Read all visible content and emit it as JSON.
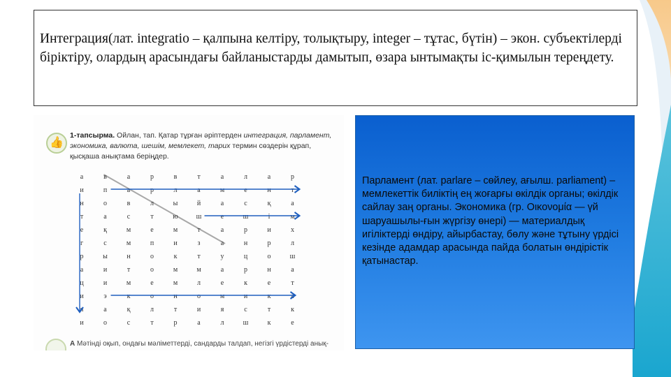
{
  "title_text": " Интеграция(лат. integratio – қалпына келтіру, толықтыру, integer – тұтас, бүтін) – экон. субъектілерді біріктіру, олардың арасындағы байланыстарды дамытып, өзара ынтымақты іс-қимылын тереңдету.",
  "exercise": {
    "task_label": "1-тапсырма.",
    "task_text_1": " Ойлан, тап. Қатар тұрған әріптерден ",
    "task_words": "интеграция, парламент, экономика, валюта, шешім, мемлекет, тарих",
    "task_text_2": " термин сөздерін құрап, қысқаша анықтама беріңдер.",
    "grid": [
      [
        "а",
        "в",
        "а",
        "р",
        "в",
        "т",
        "а",
        "л",
        "а",
        "р"
      ],
      [
        "и",
        "п",
        "а",
        "р",
        "л",
        "а",
        "м",
        "е",
        "н",
        "т"
      ],
      [
        "н",
        "о",
        "в",
        "л",
        "ы",
        "й",
        "а",
        "с",
        "қ",
        "а"
      ],
      [
        "т",
        "а",
        "с",
        "т",
        "ю",
        "ш",
        "е",
        "ш",
        "і",
        "м"
      ],
      [
        "е",
        "қ",
        "м",
        "е",
        "м",
        "т",
        "а",
        "р",
        "и",
        "х"
      ],
      [
        "г",
        "с",
        "м",
        "п",
        "и",
        "з",
        "а",
        "н",
        "р",
        "л"
      ],
      [
        "р",
        "ы",
        "н",
        "о",
        "к",
        "т",
        "у",
        "ц",
        "о",
        "ш"
      ],
      [
        "а",
        "и",
        "т",
        "о",
        "м",
        "м",
        "а",
        "р",
        "н",
        "а"
      ],
      [
        "ц",
        "и",
        "м",
        "е",
        "м",
        "л",
        "е",
        "к",
        "е",
        "т"
      ],
      [
        "и",
        "э",
        "к",
        "о",
        "н",
        "о",
        "м",
        "и",
        "к",
        "а"
      ],
      [
        "я",
        "а",
        "қ",
        "л",
        "т",
        "и",
        "я",
        "с",
        "т",
        "к"
      ],
      [
        "и",
        "о",
        "с",
        "т",
        "р",
        "а",
        "л",
        "ш",
        "к",
        "е"
      ]
    ],
    "arrow_color": "#1f5fbf",
    "bottom_badge": "А",
    "bottom_text": " Мәтінді оқып, ондағы мәліметтерді, сандарды талдап, негізгі үрдістерді анық-"
  },
  "definition_text": "Парламент (лат. parlare – сөйлеу, ағылш. parliament) – мемлекеттік биліктің ең жоғарғы  өкілдік органы; өкілдік сайлау заң органы. Экономика (гр. Οικονομία — үй шаруашылы-ғын жүргізу өнері) — материалдық игіліктерді өндіру, айырбастау, бөлу және тұтыну үрдісі  кезінде адамдар арасында пайда болатын өндірістік қатынастар."
}
